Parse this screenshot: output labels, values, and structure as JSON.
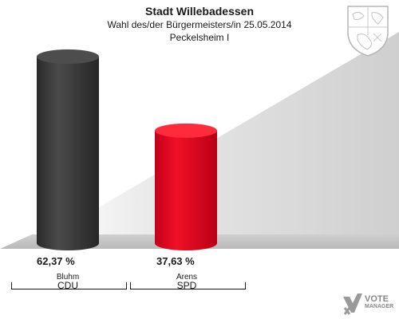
{
  "chart_data": {
    "type": "bar",
    "title": "Stadt Willebadessen",
    "subtitle": "Wahl des/der Bürgermeisters/in  25.05.2014",
    "district": "Peckelsheim I",
    "categories": [
      "CDU",
      "SPD"
    ],
    "candidates": [
      "Bluhm",
      "Arens"
    ],
    "values": [
      62.37,
      37.63
    ],
    "value_labels": [
      "62,37 %",
      "37,63 %"
    ],
    "colors": [
      "#3a3a3a",
      "#e0001b"
    ],
    "ylim": [
      0,
      62.37
    ]
  },
  "logo": {
    "line1": "VOTE",
    "line2": "MANAGER"
  },
  "icons": {
    "crest": "coat-of-arms-icon",
    "logo": "vote-manager-logo-icon"
  }
}
